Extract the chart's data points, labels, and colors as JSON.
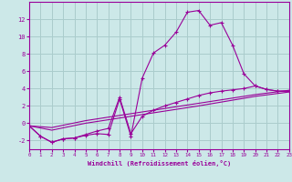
{
  "background_color": "#cce8e8",
  "grid_color": "#aacccc",
  "line_color": "#990099",
  "xlim": [
    0,
    23
  ],
  "ylim": [
    -3,
    14
  ],
  "xticks": [
    0,
    1,
    2,
    3,
    4,
    5,
    6,
    7,
    8,
    9,
    10,
    11,
    12,
    13,
    14,
    15,
    16,
    17,
    18,
    19,
    20,
    21,
    22,
    23
  ],
  "yticks": [
    -2,
    0,
    2,
    4,
    6,
    8,
    10,
    12
  ],
  "xlabel": "Windchill (Refroidissement éolien,°C)",
  "series_spike": [
    [
      0,
      -0.3
    ],
    [
      1,
      -1.5
    ],
    [
      2,
      -2.2
    ],
    [
      3,
      -1.8
    ],
    [
      4,
      -1.7
    ],
    [
      5,
      -1.4
    ],
    [
      6,
      -1.2
    ],
    [
      7,
      -1.3
    ],
    [
      8,
      2.8
    ],
    [
      9,
      -1.5
    ],
    [
      10,
      5.2
    ],
    [
      11,
      8.1
    ],
    [
      12,
      9.0
    ],
    [
      13,
      10.5
    ],
    [
      14,
      12.8
    ],
    [
      15,
      13.0
    ],
    [
      16,
      11.3
    ],
    [
      17,
      11.6
    ],
    [
      18,
      9.0
    ],
    [
      19,
      5.7
    ],
    [
      20,
      4.3
    ],
    [
      21,
      3.9
    ],
    [
      22,
      3.7
    ],
    [
      23,
      3.7
    ]
  ],
  "series_low": [
    [
      0,
      -0.3
    ],
    [
      1,
      -1.5
    ],
    [
      2,
      -2.2
    ],
    [
      3,
      -1.8
    ],
    [
      4,
      -1.7
    ],
    [
      5,
      -1.3
    ],
    [
      6,
      -0.9
    ],
    [
      7,
      -0.6
    ],
    [
      8,
      3.0
    ],
    [
      9,
      -1.2
    ],
    [
      10,
      0.8
    ],
    [
      11,
      1.5
    ],
    [
      12,
      2.0
    ],
    [
      13,
      2.4
    ],
    [
      14,
      2.8
    ],
    [
      15,
      3.2
    ],
    [
      16,
      3.5
    ],
    [
      17,
      3.7
    ],
    [
      18,
      3.85
    ],
    [
      19,
      4.0
    ],
    [
      20,
      4.3
    ],
    [
      21,
      3.9
    ],
    [
      22,
      3.7
    ],
    [
      23,
      3.7
    ]
  ],
  "line_diag1": [
    [
      0,
      -0.3
    ],
    [
      2,
      -0.5
    ],
    [
      5,
      0.3
    ],
    [
      10,
      1.3
    ],
    [
      15,
      2.3
    ],
    [
      20,
      3.3
    ],
    [
      23,
      3.8
    ]
  ],
  "line_diag2": [
    [
      0,
      -0.3
    ],
    [
      2,
      -0.8
    ],
    [
      5,
      0.0
    ],
    [
      10,
      1.0
    ],
    [
      15,
      2.0
    ],
    [
      20,
      3.1
    ],
    [
      23,
      3.6
    ]
  ]
}
